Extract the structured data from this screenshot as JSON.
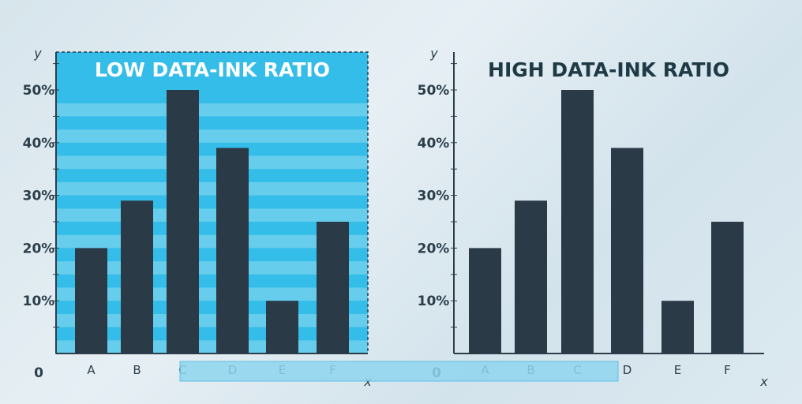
{
  "chart_data": [
    {
      "type": "bar",
      "title": "LOW DATA-INK RATIO",
      "xlabel": "x",
      "ylabel": "y",
      "categories": [
        "A",
        "B",
        "C",
        "D",
        "E",
        "F"
      ],
      "values": [
        20,
        29,
        50,
        39,
        10,
        25
      ],
      "ylim": [
        0,
        50
      ],
      "yticks": [
        "10%",
        "20%",
        "30%",
        "40%",
        "50%"
      ],
      "zero_label": "0",
      "grid": "striped background bands",
      "colors": {
        "bar": "#2b3a47",
        "band_light": "#67cdec",
        "band_dark": "#33bde8",
        "title": "#ffffff"
      }
    },
    {
      "type": "bar",
      "title": "HIGH DATA-INK RATIO",
      "xlabel": "x",
      "ylabel": "y",
      "categories": [
        "A",
        "B",
        "C",
        "D",
        "E",
        "F"
      ],
      "values": [
        20,
        29,
        50,
        39,
        10,
        25
      ],
      "ylim": [
        0,
        50
      ],
      "yticks": [
        "10%",
        "20%",
        "30%",
        "40%",
        "50%"
      ],
      "zero_label": "0",
      "grid": "none",
      "colors": {
        "bar": "#2b3a47",
        "title": "#1e3a45"
      }
    }
  ]
}
